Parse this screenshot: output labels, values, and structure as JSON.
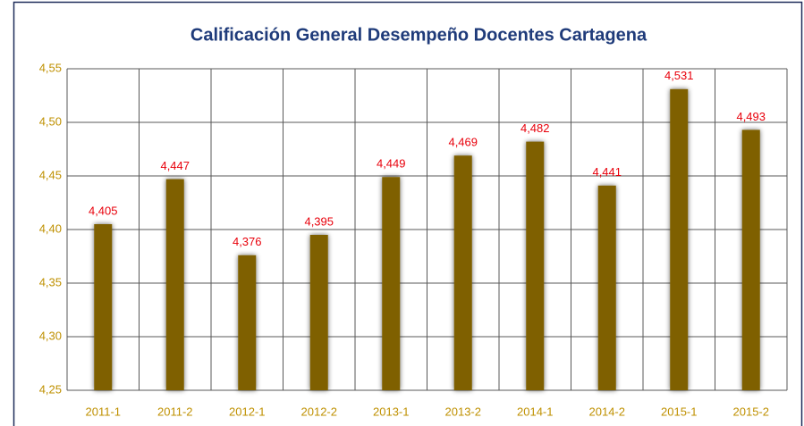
{
  "chart_data": {
    "type": "bar",
    "title": "Calificación General Desempeño Docentes Cartagena",
    "categories": [
      "2011-1",
      "2011-2",
      "2012-1",
      "2012-2",
      "2013-1",
      "2013-2",
      "2014-1",
      "2014-2",
      "2015-1",
      "2015-2"
    ],
    "values": [
      4.405,
      4.447,
      4.376,
      4.395,
      4.449,
      4.469,
      4.482,
      4.441,
      4.531,
      4.493
    ],
    "value_labels": [
      "4,405",
      "4,447",
      "4,376",
      "4,395",
      "4,449",
      "4,469",
      "4,482",
      "4,441",
      "4,531",
      "4,493"
    ],
    "color": "#7f6000",
    "label_color": "#e8000b",
    "tick_color": "#bf9000",
    "ylim": [
      4.25,
      4.55
    ],
    "yticks": [
      {
        "value": 4.25,
        "label": "4,25"
      },
      {
        "value": 4.3,
        "label": "4,30"
      },
      {
        "value": 4.35,
        "label": "4,35"
      },
      {
        "value": 4.4,
        "label": "4,40"
      },
      {
        "value": 4.45,
        "label": "4,45"
      },
      {
        "value": 4.5,
        "label": "4,50"
      },
      {
        "value": 4.55,
        "label": "4,55"
      }
    ],
    "grid": true
  }
}
